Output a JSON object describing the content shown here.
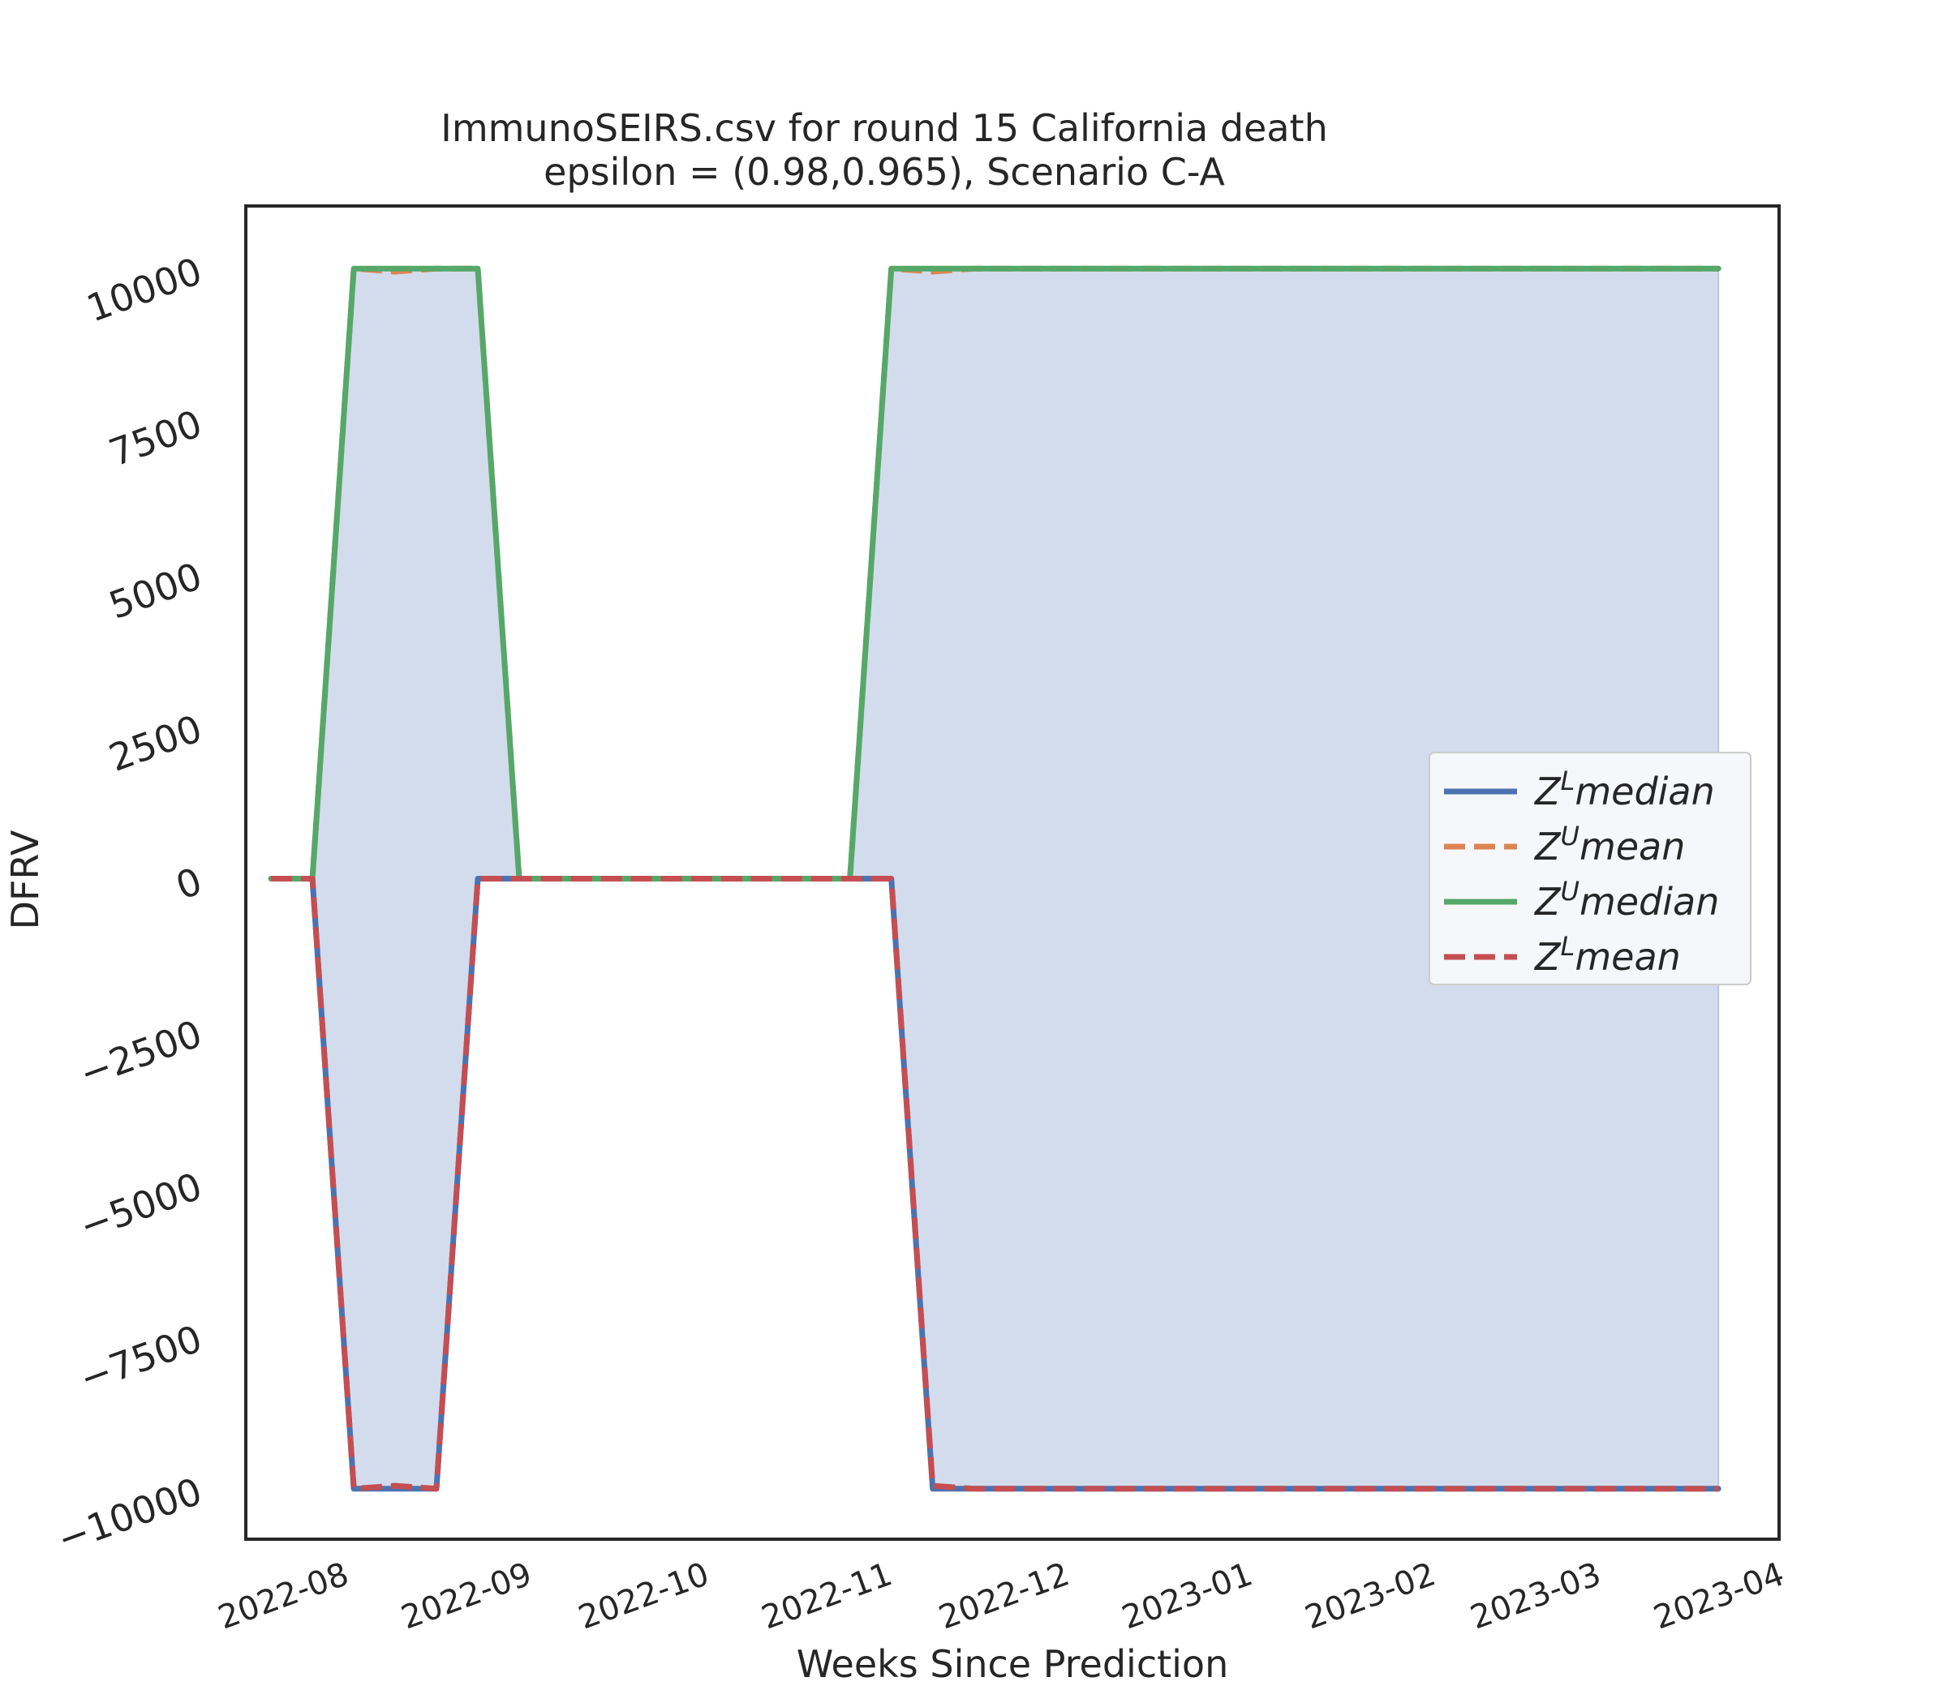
{
  "chart_data": {
    "type": "line",
    "title_line1": "ImmunoSEIRS.csv for round 15 California  death",
    "title_line2": "epsilon = (0.98,0.965), Scenario C-A",
    "xlabel": "Weeks Since Prediction",
    "ylabel": "DFRV",
    "xlim": [
      "2022-07-20",
      "2023-04-05"
    ],
    "ylim": [
      -10800,
      11000
    ],
    "x_ticks": [
      "2022-08",
      "2022-09",
      "2022-10",
      "2022-11",
      "2022-12",
      "2023-01",
      "2023-02",
      "2023-03",
      "2023-04"
    ],
    "x_tick_dates": [
      "2022-08-01",
      "2022-09-01",
      "2022-10-01",
      "2022-11-01",
      "2022-12-01",
      "2023-01-01",
      "2023-02-01",
      "2023-03-01",
      "2023-04-01"
    ],
    "y_ticks": [
      10000,
      7500,
      5000,
      2500,
      0,
      -2500,
      -5000,
      -7500,
      -10000
    ],
    "y_tick_labels": [
      "10000",
      "7500",
      "5000",
      "2500",
      "0",
      "−2500",
      "−5000",
      "−7500",
      "−10000"
    ],
    "grid": false,
    "legend_position": "center-right",
    "x": [
      "2022-07-24",
      "2022-07-31",
      "2022-08-07",
      "2022-08-14",
      "2022-08-21",
      "2022-08-28",
      "2022-09-04",
      "2022-09-11",
      "2022-09-18",
      "2022-09-25",
      "2022-10-02",
      "2022-10-09",
      "2022-10-16",
      "2022-10-23",
      "2022-10-30",
      "2022-11-06",
      "2022-11-13",
      "2022-11-20",
      "2022-11-27",
      "2022-12-04",
      "2022-12-11",
      "2022-12-18",
      "2022-12-25",
      "2023-01-01",
      "2023-01-08",
      "2023-01-15",
      "2023-01-22",
      "2023-01-29",
      "2023-02-05",
      "2023-02-12",
      "2023-02-19",
      "2023-02-26",
      "2023-03-05",
      "2023-03-12",
      "2023-03-19",
      "2023-03-26"
    ],
    "series": [
      {
        "name_base": "Z",
        "name_sup": "L",
        "name_tail": "median",
        "color": "#4c72b0",
        "dash": "solid",
        "values": [
          0,
          0,
          -10000,
          -10000,
          -10000,
          0,
          0,
          0,
          0,
          0,
          0,
          0,
          0,
          0,
          0,
          0,
          -10000,
          -10000,
          -10000,
          -10000,
          -10000,
          -10000,
          -10000,
          -10000,
          -10000,
          -10000,
          -10000,
          -10000,
          -10000,
          -10000,
          -10000,
          -10000,
          -10000,
          -10000,
          -10000,
          -10000
        ]
      },
      {
        "name_base": "Z",
        "name_sup": "U",
        "name_tail": "mean",
        "color": "#dd8452",
        "dash": "dashed",
        "values": [
          0,
          0,
          10000,
          9950,
          10000,
          10000,
          0,
          0,
          0,
          0,
          0,
          0,
          0,
          0,
          0,
          10000,
          9950,
          10000,
          10000,
          10000,
          10000,
          10000,
          10000,
          10000,
          10000,
          10000,
          10000,
          10000,
          10000,
          10000,
          10000,
          10000,
          10000,
          10000,
          10000,
          10000
        ]
      },
      {
        "name_base": "Z",
        "name_sup": "U",
        "name_tail": "median",
        "color": "#55a868",
        "dash": "solid",
        "values": [
          0,
          0,
          10000,
          10000,
          10000,
          10000,
          0,
          0,
          0,
          0,
          0,
          0,
          0,
          0,
          0,
          10000,
          10000,
          10000,
          10000,
          10000,
          10000,
          10000,
          10000,
          10000,
          10000,
          10000,
          10000,
          10000,
          10000,
          10000,
          10000,
          10000,
          10000,
          10000,
          10000,
          10000
        ]
      },
      {
        "name_base": "Z",
        "name_sup": "L",
        "name_tail": "mean",
        "color": "#c44e52",
        "dash": "dashed",
        "values": [
          0,
          0,
          -10000,
          -9950,
          -10000,
          0,
          0,
          0,
          0,
          0,
          0,
          0,
          0,
          0,
          0,
          0,
          -9950,
          -10000,
          -10000,
          -10000,
          -10000,
          -10000,
          -10000,
          -10000,
          -10000,
          -10000,
          -10000,
          -10000,
          -10000,
          -10000,
          -10000,
          -10000,
          -10000,
          -10000,
          -10000,
          -10000
        ]
      }
    ],
    "fill_color": "#d2dcec"
  }
}
